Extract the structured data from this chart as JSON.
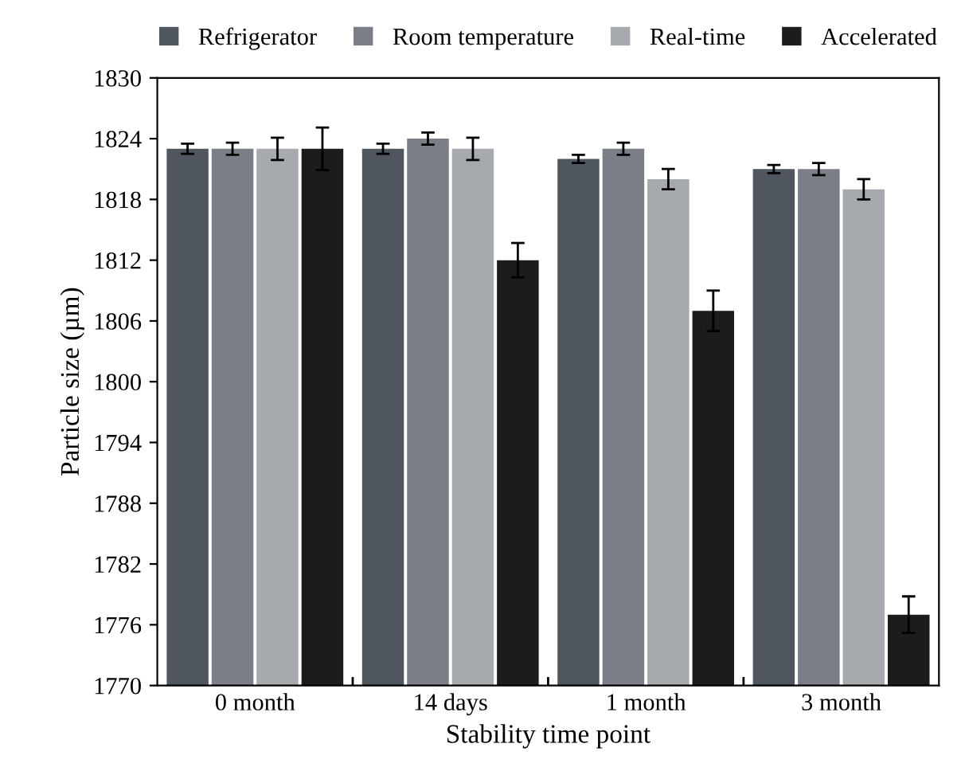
{
  "chart_data": {
    "type": "bar",
    "xlabel": "Stability time point",
    "ylabel": "Particle size (µm)",
    "categories": [
      "0 month",
      "14 days",
      "1 month",
      "3 month"
    ],
    "series": [
      {
        "name": "Refrigerator",
        "color": "#50565e",
        "values": [
          1823,
          1823,
          1822,
          1821
        ],
        "errors": [
          0.5,
          0.5,
          0.4,
          0.4
        ]
      },
      {
        "name": "Room temperature",
        "color": "#7a7f87",
        "values": [
          1823,
          1824,
          1823,
          1821
        ],
        "errors": [
          0.6,
          0.6,
          0.6,
          0.6
        ]
      },
      {
        "name": "Real-time",
        "color": "#a6a9ad",
        "values": [
          1823,
          1823,
          1820,
          1819
        ],
        "errors": [
          1.1,
          1.1,
          1.0,
          1.0
        ]
      },
      {
        "name": "Accelerated",
        "color": "#1c1c1c",
        "values": [
          1823,
          1812,
          1807,
          1777
        ],
        "errors": [
          2.1,
          1.7,
          2.0,
          1.8
        ]
      }
    ],
    "ylim": [
      1770,
      1830
    ],
    "yticks": [
      1770,
      1776,
      1782,
      1788,
      1794,
      1800,
      1806,
      1812,
      1818,
      1824,
      1830
    ],
    "grid": false,
    "legend": "top"
  }
}
